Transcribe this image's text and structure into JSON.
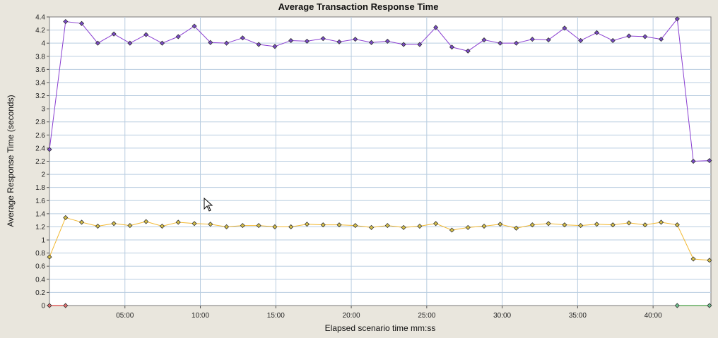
{
  "chart_data": {
    "type": "line",
    "title": "Average Transaction Response Time",
    "xlabel": "Elapsed scenario time mm:ss",
    "ylabel": "Average Response Time (seconds)",
    "xlim": [
      0,
      2630
    ],
    "ylim": [
      0,
      4.4
    ],
    "x_ticks": [
      {
        "value": 300,
        "label": "05:00"
      },
      {
        "value": 600,
        "label": "10:00"
      },
      {
        "value": 900,
        "label": "15:00"
      },
      {
        "value": 1200,
        "label": "20:00"
      },
      {
        "value": 1500,
        "label": "25:00"
      },
      {
        "value": 1800,
        "label": "30:00"
      },
      {
        "value": 2100,
        "label": "35:00"
      },
      {
        "value": 2400,
        "label": "40:00"
      }
    ],
    "y_ticks": [
      {
        "value": 0,
        "label": "0"
      },
      {
        "value": 0.2,
        "label": "0.2"
      },
      {
        "value": 0.4,
        "label": "0.4"
      },
      {
        "value": 0.6,
        "label": "0.6"
      },
      {
        "value": 0.8,
        "label": "0.8"
      },
      {
        "value": 1,
        "label": "1"
      },
      {
        "value": 1.2,
        "label": "1.2"
      },
      {
        "value": 1.4,
        "label": "1.4"
      },
      {
        "value": 1.6,
        "label": "1.6"
      },
      {
        "value": 1.8,
        "label": "1.8"
      },
      {
        "value": 2,
        "label": "2"
      },
      {
        "value": 2.2,
        "label": "2.2"
      },
      {
        "value": 2.4,
        "label": "2.4"
      },
      {
        "value": 2.6,
        "label": "2.6"
      },
      {
        "value": 2.8,
        "label": "2.8"
      },
      {
        "value": 3,
        "label": "3"
      },
      {
        "value": 3.2,
        "label": "3.2"
      },
      {
        "value": 3.4,
        "label": "3.4"
      },
      {
        "value": 3.6,
        "label": "3.6"
      },
      {
        "value": 3.8,
        "label": "3.8"
      },
      {
        "value": 4,
        "label": "4"
      },
      {
        "value": 4.2,
        "label": "4.2"
      },
      {
        "value": 4.4,
        "label": "4.4"
      }
    ],
    "grid": true,
    "x_unit_seconds_per_point": 60,
    "series": [
      {
        "color": "#8a3fd1",
        "marker_fill": "#7a4bc8",
        "x": [
          0,
          64,
          128,
          192,
          256,
          320,
          384,
          448,
          512,
          576,
          640,
          704,
          768,
          832,
          896,
          960,
          1024,
          1088,
          1152,
          1216,
          1280,
          1344,
          1408,
          1472,
          1536,
          1600,
          1664,
          1728,
          1792,
          1856,
          1920,
          1984,
          2048,
          2112,
          2176,
          2240,
          2304,
          2368,
          2432,
          2496,
          2560,
          2624
        ],
        "values": [
          2.38,
          4.33,
          4.3,
          4.0,
          4.14,
          4.0,
          4.13,
          4.0,
          4.1,
          4.26,
          4.01,
          4.0,
          4.08,
          3.98,
          3.95,
          4.04,
          4.03,
          4.07,
          4.02,
          4.06,
          4.01,
          4.03,
          3.98,
          3.98,
          4.24,
          3.94,
          3.88,
          4.05,
          4.0,
          4.0,
          4.06,
          4.05,
          4.23,
          4.04,
          4.16,
          4.04,
          4.11,
          4.1,
          4.06,
          4.37,
          2.2,
          2.21
        ]
      },
      {
        "color": "#f2b830",
        "marker_fill": "#d9c24a",
        "x": [
          0,
          64,
          128,
          192,
          256,
          320,
          384,
          448,
          512,
          576,
          640,
          704,
          768,
          832,
          896,
          960,
          1024,
          1088,
          1152,
          1216,
          1280,
          1344,
          1408,
          1472,
          1536,
          1600,
          1664,
          1728,
          1792,
          1856,
          1920,
          1984,
          2048,
          2112,
          2176,
          2240,
          2304,
          2368,
          2432,
          2496,
          2560,
          2624
        ],
        "values": [
          0.74,
          1.34,
          1.27,
          1.21,
          1.25,
          1.22,
          1.28,
          1.21,
          1.27,
          1.25,
          1.24,
          1.2,
          1.22,
          1.22,
          1.2,
          1.2,
          1.24,
          1.23,
          1.23,
          1.22,
          1.19,
          1.22,
          1.19,
          1.21,
          1.25,
          1.15,
          1.19,
          1.21,
          1.24,
          1.18,
          1.23,
          1.25,
          1.23,
          1.22,
          1.24,
          1.23,
          1.26,
          1.23,
          1.27,
          1.23,
          0.71,
          0.69
        ]
      },
      {
        "color": "#d01010",
        "marker_fill": "#e07070",
        "x": [
          0,
          64
        ],
        "values": [
          0,
          0
        ]
      },
      {
        "color": "#1a8a1a",
        "marker_fill": "#6cc08c",
        "x": [
          2496,
          2624
        ],
        "values": [
          0,
          0
        ]
      }
    ]
  }
}
